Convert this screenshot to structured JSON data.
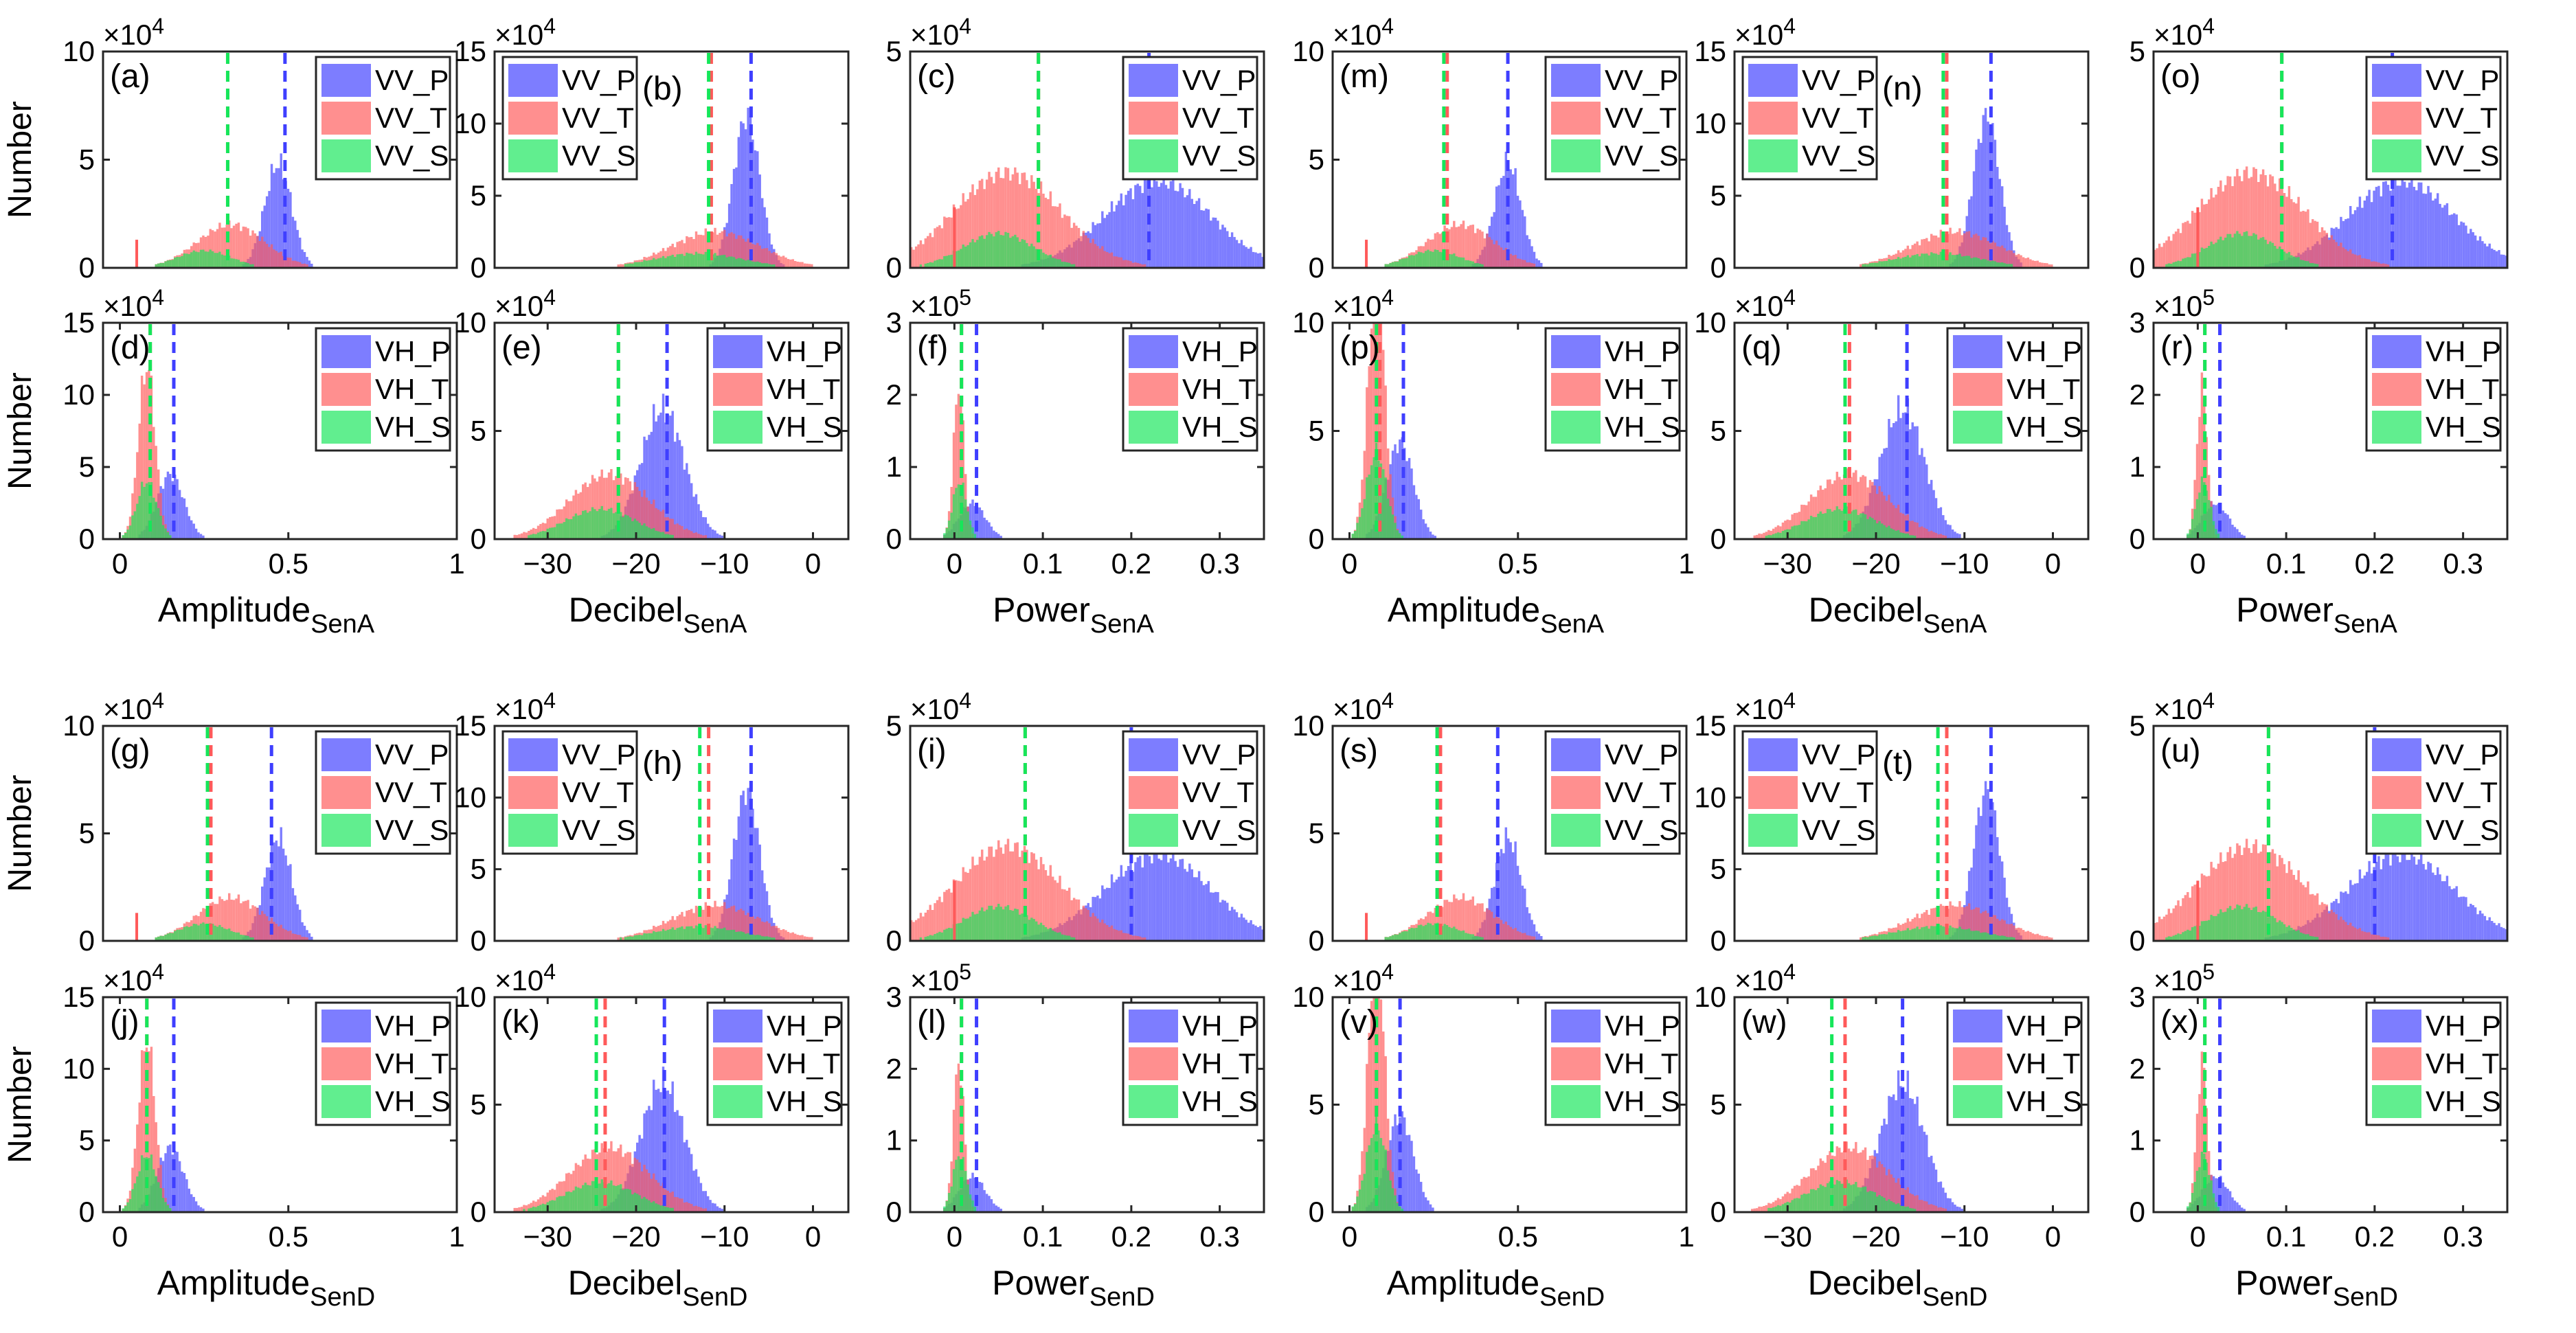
{
  "colors": {
    "P": "#3f3fff",
    "T": "#ff5a5a",
    "S": "#16e65a",
    "axis": "#262626"
  },
  "ylabel": "Number",
  "chart_data": [
    {
      "id": "a",
      "type": "bar",
      "label": "(a)",
      "label_pos": "left",
      "legend": [
        "VV_P",
        "VV_T",
        "VV_S"
      ],
      "xlim": [
        -0.05,
        1
      ],
      "ylim": [
        0,
        10
      ],
      "yticks": [
        0,
        5,
        10
      ],
      "xticks": [],
      "xticklabels": [],
      "exponent": "4",
      "means": {
        "P": 0.49,
        "T": 0.32,
        "S": 0.32
      },
      "kind": "ampVV",
      "ylabel": "Number"
    },
    {
      "id": "b",
      "type": "bar",
      "label": "(b)",
      "label_pos": "right",
      "legend": [
        "VV_P",
        "VV_T",
        "VV_S"
      ],
      "xlim": [
        -36,
        4
      ],
      "ylim": [
        0,
        15
      ],
      "yticks": [
        0,
        5,
        10,
        15
      ],
      "xticks": [],
      "xticklabels": [],
      "exponent": "4",
      "means": {
        "P": -7,
        "T": -11.5,
        "S": -11.8
      },
      "kind": "dbVV"
    },
    {
      "id": "c",
      "type": "bar",
      "label": "(c)",
      "label_pos": "left",
      "legend": [
        "VV_P",
        "VV_T",
        "VV_S"
      ],
      "xlim": [
        -0.05,
        0.35
      ],
      "ylim": [
        0,
        5
      ],
      "yticks": [
        0,
        5
      ],
      "xticks": [],
      "xticklabels": [],
      "exponent": "4",
      "means": {
        "P": 0.22,
        "T": 0.095,
        "S": 0.095
      },
      "kind": "powVV"
    },
    {
      "id": "m",
      "type": "bar",
      "label": "(m)",
      "label_pos": "left",
      "legend": [
        "VV_P",
        "VV_T",
        "VV_S"
      ],
      "xlim": [
        -0.05,
        1
      ],
      "ylim": [
        0,
        10
      ],
      "yticks": [
        0,
        5,
        10
      ],
      "xticks": [],
      "xticklabels": [],
      "exponent": "4",
      "means": {
        "P": 0.47,
        "T": 0.29,
        "S": 0.28
      },
      "kind": "ampVV"
    },
    {
      "id": "n",
      "type": "bar",
      "label": "(n)",
      "label_pos": "right",
      "legend": [
        "VV_P",
        "VV_T",
        "VV_S"
      ],
      "xlim": [
        -36,
        4
      ],
      "ylim": [
        0,
        15
      ],
      "yticks": [
        0,
        5,
        10,
        15
      ],
      "xticks": [],
      "xticklabels": [],
      "exponent": "4",
      "means": {
        "P": -7,
        "T": -12,
        "S": -12.4
      },
      "kind": "dbVV"
    },
    {
      "id": "o",
      "type": "bar",
      "label": "(o)",
      "label_pos": "left",
      "legend": [
        "VV_P",
        "VV_T",
        "VV_S"
      ],
      "xlim": [
        -0.05,
        0.35
      ],
      "ylim": [
        0,
        5
      ],
      "yticks": [
        0,
        5
      ],
      "xticks": [],
      "xticklabels": [],
      "exponent": "4",
      "means": {
        "P": 0.22,
        "T": 0.095,
        "S": 0.095
      },
      "kind": "powVV"
    },
    {
      "id": "d",
      "type": "bar",
      "label": "(d)",
      "label_pos": "left",
      "legend": [
        "VH_P",
        "VH_T",
        "VH_S"
      ],
      "xlim": [
        -0.05,
        1
      ],
      "ylim": [
        0,
        15
      ],
      "yticks": [
        0,
        5,
        10,
        15
      ],
      "xticks": [
        0,
        0.5,
        1
      ],
      "xticklabels": [
        "0",
        "0.5",
        "1"
      ],
      "exponent": "4",
      "means": {
        "P": 0.16,
        "T": 0.09,
        "S": 0.09
      },
      "kind": "ampVH",
      "xlabel": "Amplitude",
      "xsub": "SenA",
      "ylabel": "Number"
    },
    {
      "id": "e",
      "type": "bar",
      "label": "(e)",
      "label_pos": "left",
      "legend": [
        "VH_P",
        "VH_T",
        "VH_S"
      ],
      "xlim": [
        -36,
        4
      ],
      "ylim": [
        0,
        10
      ],
      "yticks": [
        0,
        5,
        10
      ],
      "xticks": [
        -30,
        -20,
        -10,
        0
      ],
      "xticklabels": [
        "-30",
        "-20",
        "-10",
        "0"
      ],
      "exponent": "4",
      "means": {
        "P": -16.5,
        "T": -22,
        "S": -22
      },
      "kind": "dbVH",
      "xlabel": "Decibel",
      "xsub": "SenA"
    },
    {
      "id": "f",
      "type": "bar",
      "label": "(f)",
      "label_pos": "left",
      "legend": [
        "VH_P",
        "VH_T",
        "VH_S"
      ],
      "xlim": [
        -0.05,
        0.35
      ],
      "ylim": [
        0,
        3
      ],
      "yticks": [
        0,
        1,
        2,
        3
      ],
      "xticks": [
        0,
        0.1,
        0.2,
        0.3
      ],
      "xticklabels": [
        "0",
        "0.1",
        "0.2",
        "0.3"
      ],
      "exponent": "5",
      "means": {
        "P": 0.025,
        "T": 0.008,
        "S": 0.008
      },
      "kind": "powVH",
      "xlabel": "Power",
      "xsub": "SenA"
    },
    {
      "id": "p",
      "type": "bar",
      "label": "(p)",
      "label_pos": "left",
      "legend": [
        "VH_P",
        "VH_T",
        "VH_S"
      ],
      "xlim": [
        -0.05,
        1
      ],
      "ylim": [
        0,
        10
      ],
      "yticks": [
        0,
        5,
        10
      ],
      "xticks": [
        0,
        0.5,
        1
      ],
      "xticklabels": [
        "0",
        "0.5",
        "1"
      ],
      "exponent": "4",
      "means": {
        "P": 0.16,
        "T": 0.09,
        "S": 0.08
      },
      "kind": "ampVH",
      "xlabel": "Amplitude",
      "xsub": "SenA"
    },
    {
      "id": "q",
      "type": "bar",
      "label": "(q)",
      "label_pos": "left",
      "legend": [
        "VH_P",
        "VH_T",
        "VH_S"
      ],
      "xlim": [
        -36,
        4
      ],
      "ylim": [
        0,
        10
      ],
      "yticks": [
        0,
        5,
        10
      ],
      "xticks": [
        -30,
        -20,
        -10,
        0
      ],
      "xticklabels": [
        "-30",
        "-20",
        "-10",
        "0"
      ],
      "exponent": "4",
      "means": {
        "P": -16.5,
        "T": -23,
        "S": -23.5
      },
      "kind": "dbVH",
      "xlabel": "Decibel",
      "xsub": "SenA"
    },
    {
      "id": "r",
      "type": "bar",
      "label": "(r)",
      "label_pos": "left",
      "legend": [
        "VH_P",
        "VH_T",
        "VH_S"
      ],
      "xlim": [
        -0.05,
        0.35
      ],
      "ylim": [
        0,
        3
      ],
      "yticks": [
        0,
        1,
        2,
        3
      ],
      "xticks": [
        0,
        0.1,
        0.2,
        0.3
      ],
      "xticklabels": [
        "0",
        "0.1",
        "0.2",
        "0.3"
      ],
      "exponent": "5",
      "means": {
        "P": 0.025,
        "T": 0.008,
        "S": 0.008
      },
      "kind": "powVH",
      "xlabel": "Power",
      "xsub": "SenA"
    },
    {
      "id": "g",
      "type": "bar",
      "label": "(g)",
      "label_pos": "left",
      "legend": [
        "VV_P",
        "VV_T",
        "VV_S"
      ],
      "xlim": [
        -0.05,
        1
      ],
      "ylim": [
        0,
        10
      ],
      "yticks": [
        0,
        5,
        10
      ],
      "xticks": [],
      "xticklabels": [],
      "exponent": "4",
      "means": {
        "P": 0.45,
        "T": 0.27,
        "S": 0.26
      },
      "kind": "ampVV",
      "ylabel": "Number"
    },
    {
      "id": "h",
      "type": "bar",
      "label": "(h)",
      "label_pos": "right",
      "legend": [
        "VV_P",
        "VV_T",
        "VV_S"
      ],
      "xlim": [
        -36,
        4
      ],
      "ylim": [
        0,
        15
      ],
      "yticks": [
        0,
        5,
        10,
        15
      ],
      "xticks": [],
      "xticklabels": [],
      "exponent": "4",
      "means": {
        "P": -7,
        "T": -11.8,
        "S": -12.8
      },
      "kind": "dbVV"
    },
    {
      "id": "i",
      "type": "bar",
      "label": "(i)",
      "label_pos": "left",
      "legend": [
        "VV_P",
        "VV_T",
        "VV_S"
      ],
      "xlim": [
        -0.05,
        0.35
      ],
      "ylim": [
        0,
        5
      ],
      "yticks": [
        0,
        5
      ],
      "xticks": [],
      "xticklabels": [],
      "exponent": "4",
      "means": {
        "P": 0.2,
        "T": 0.08,
        "S": 0.08
      },
      "kind": "powVV"
    },
    {
      "id": "s",
      "type": "bar",
      "label": "(s)",
      "label_pos": "left",
      "legend": [
        "VV_P",
        "VV_T",
        "VV_S"
      ],
      "xlim": [
        -0.05,
        1
      ],
      "ylim": [
        0,
        10
      ],
      "yticks": [
        0,
        5,
        10
      ],
      "xticks": [],
      "xticklabels": [],
      "exponent": "4",
      "means": {
        "P": 0.44,
        "T": 0.27,
        "S": 0.26
      },
      "kind": "ampVV"
    },
    {
      "id": "t",
      "type": "bar",
      "label": "(t)",
      "label_pos": "right",
      "legend": [
        "VV_P",
        "VV_T",
        "VV_S"
      ],
      "xlim": [
        -36,
        4
      ],
      "ylim": [
        0,
        15
      ],
      "yticks": [
        0,
        5,
        10,
        15
      ],
      "xticks": [],
      "xticklabels": [],
      "exponent": "4",
      "means": {
        "P": -7,
        "T": -12,
        "S": -13
      },
      "kind": "dbVV"
    },
    {
      "id": "u",
      "type": "bar",
      "label": "(u)",
      "label_pos": "left",
      "legend": [
        "VV_P",
        "VV_T",
        "VV_S"
      ],
      "xlim": [
        -0.05,
        0.35
      ],
      "ylim": [
        0,
        5
      ],
      "yticks": [
        0,
        5
      ],
      "xticks": [],
      "xticklabels": [],
      "exponent": "4",
      "means": {
        "P": 0.2,
        "T": 0.08,
        "S": 0.08
      },
      "kind": "powVV"
    },
    {
      "id": "j",
      "type": "bar",
      "label": "(j)",
      "label_pos": "left",
      "legend": [
        "VH_P",
        "VH_T",
        "VH_S"
      ],
      "xlim": [
        -0.05,
        1
      ],
      "ylim": [
        0,
        15
      ],
      "yticks": [
        0,
        5,
        10,
        15
      ],
      "xticks": [
        0,
        0.5,
        1
      ],
      "xticklabels": [
        "0",
        "0.5",
        "1"
      ],
      "exponent": "4",
      "means": {
        "P": 0.16,
        "T": 0.08,
        "S": 0.08
      },
      "kind": "ampVH",
      "xlabel": "Amplitude",
      "xsub": "SenD",
      "ylabel": "Number"
    },
    {
      "id": "k",
      "type": "bar",
      "label": "(k)",
      "label_pos": "left",
      "legend": [
        "VH_P",
        "VH_T",
        "VH_S"
      ],
      "xlim": [
        -36,
        4
      ],
      "ylim": [
        0,
        10
      ],
      "yticks": [
        0,
        5,
        10
      ],
      "xticks": [
        -30,
        -20,
        -10,
        0
      ],
      "xticklabels": [
        "-30",
        "-20",
        "-10",
        "0"
      ],
      "exponent": "4",
      "means": {
        "P": -16.8,
        "T": -23.5,
        "S": -24.5
      },
      "kind": "dbVH",
      "xlabel": "Decibel",
      "xsub": "SenD"
    },
    {
      "id": "l",
      "type": "bar",
      "label": "(l)",
      "label_pos": "left",
      "legend": [
        "VH_P",
        "VH_T",
        "VH_S"
      ],
      "xlim": [
        -0.05,
        0.35
      ],
      "ylim": [
        0,
        3
      ],
      "yticks": [
        0,
        1,
        2,
        3
      ],
      "xticks": [
        0,
        0.1,
        0.2,
        0.3
      ],
      "xticklabels": [
        "0",
        "0.1",
        "0.2",
        "0.3"
      ],
      "exponent": "5",
      "means": {
        "P": 0.025,
        "T": 0.008,
        "S": 0.008
      },
      "kind": "powVH",
      "xlabel": "Power",
      "xsub": "SenD"
    },
    {
      "id": "v",
      "type": "bar",
      "label": "(v)",
      "label_pos": "left",
      "legend": [
        "VH_P",
        "VH_T",
        "VH_S"
      ],
      "xlim": [
        -0.05,
        1
      ],
      "ylim": [
        0,
        10
      ],
      "yticks": [
        0,
        5,
        10
      ],
      "xticks": [
        0,
        0.5,
        1
      ],
      "xticklabels": [
        "0",
        "0.5",
        "1"
      ],
      "exponent": "4",
      "means": {
        "P": 0.15,
        "T": 0.08,
        "S": 0.08
      },
      "kind": "ampVH",
      "xlabel": "Amplitude",
      "xsub": "SenD"
    },
    {
      "id": "w",
      "type": "bar",
      "label": "(w)",
      "label_pos": "left",
      "legend": [
        "VH_P",
        "VH_T",
        "VH_S"
      ],
      "xlim": [
        -36,
        4
      ],
      "ylim": [
        0,
        10
      ],
      "yticks": [
        0,
        5,
        10
      ],
      "xticks": [
        -30,
        -20,
        -10,
        0
      ],
      "xticklabels": [
        "-30",
        "-20",
        "-10",
        "0"
      ],
      "exponent": "4",
      "means": {
        "P": -17,
        "T": -23.5,
        "S": -25
      },
      "kind": "dbVH",
      "xlabel": "Decibel",
      "xsub": "SenD"
    },
    {
      "id": "x",
      "type": "bar",
      "label": "(x)",
      "label_pos": "left",
      "legend": [
        "VH_P",
        "VH_T",
        "VH_S"
      ],
      "xlim": [
        -0.05,
        0.35
      ],
      "ylim": [
        0,
        3
      ],
      "yticks": [
        0,
        1,
        2,
        3
      ],
      "xticks": [
        0,
        0.1,
        0.2,
        0.3
      ],
      "xticklabels": [
        "0",
        "0.1",
        "0.2",
        "0.3"
      ],
      "exponent": "5",
      "means": {
        "P": 0.025,
        "T": 0.008,
        "S": 0.008
      },
      "kind": "powVH",
      "xlabel": "Power",
      "xsub": "SenD"
    }
  ],
  "distributions": {
    "ampVV": {
      "P": [
        [
          0.47,
          0.04,
          4.8
        ]
      ],
      "T": [
        [
          0.33,
          0.1,
          2.0
        ]
      ],
      "S": [
        [
          0.25,
          0.08,
          0.8
        ]
      ],
      "spike": [
        0.05,
        1.3
      ]
    },
    "dbVV": {
      "P": [
        [
          -7.5,
          1.5,
          10.5
        ]
      ],
      "T": [
        [
          -11,
          5,
          2.5
        ]
      ],
      "S": [
        [
          -13,
          5,
          1.0
        ]
      ]
    },
    "powVV": {
      "P": [
        [
          0.23,
          0.06,
          2.0
        ]
      ],
      "T": [
        [
          0.06,
          0.06,
          2.2
        ]
      ],
      "S": [
        [
          0.05,
          0.04,
          0.8
        ]
      ],
      "spike": [
        0.0,
        1.4
      ]
    },
    "ampVH": {
      "P": [
        [
          0.15,
          0.04,
          4.5
        ]
      ],
      "T": [
        [
          0.08,
          0.025,
          12
        ]
      ],
      "S": [
        [
          0.08,
          0.03,
          4
        ]
      ]
    },
    "dbVH": {
      "P": [
        [
          -17,
          2.5,
          6
        ]
      ],
      "T": [
        [
          -23,
          4.5,
          3.0
        ]
      ],
      "S": [
        [
          -24,
          4,
          1.4
        ]
      ]
    },
    "powVH": {
      "P": [
        [
          0.02,
          0.015,
          0.5
        ]
      ],
      "T": [
        [
          0.005,
          0.006,
          2.1
        ]
      ],
      "S": [
        [
          0.006,
          0.008,
          0.8
        ]
      ]
    }
  }
}
